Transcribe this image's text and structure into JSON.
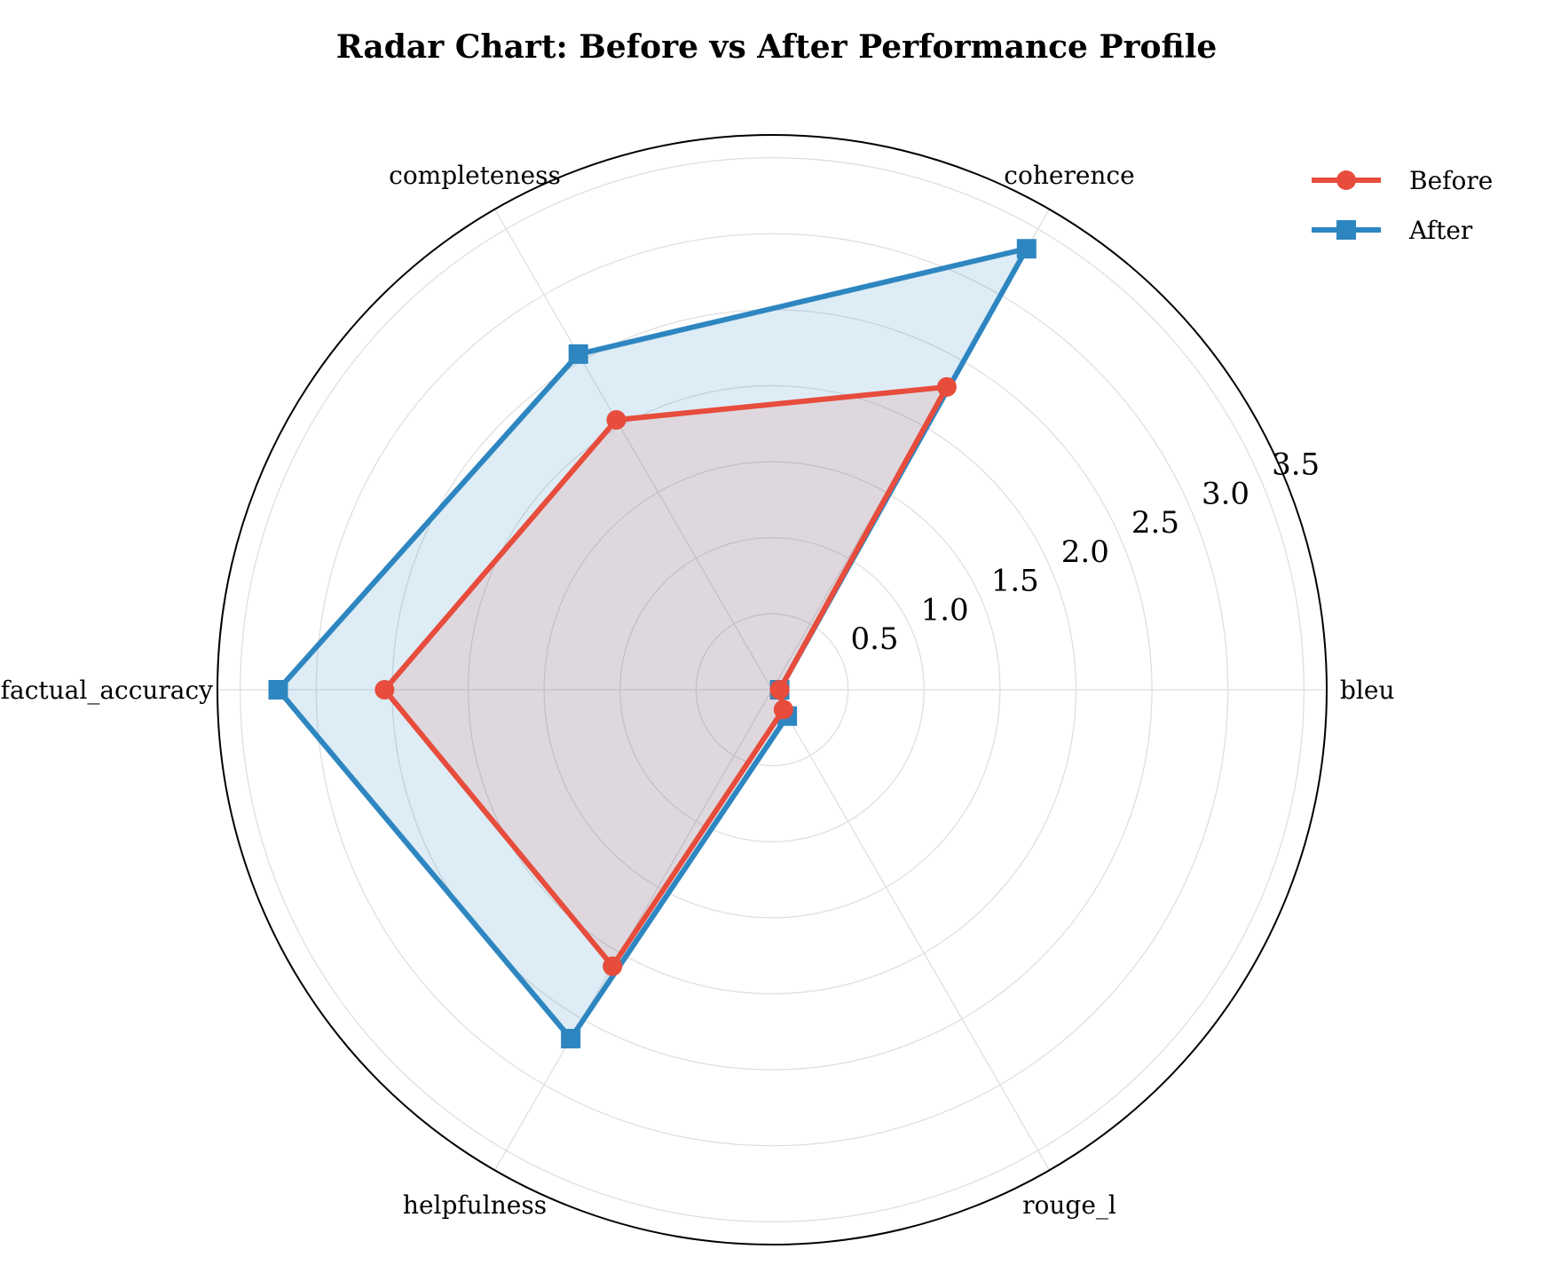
{
  "chart_data": {
    "type": "radar",
    "title": "Radar Chart: Before vs After Performance Profile",
    "axes": [
      "bleu",
      "coherence",
      "completeness",
      "factual_accuracy",
      "helpfulness",
      "rouge_l"
    ],
    "rlim": [
      0,
      3.65
    ],
    "rticks": [
      0.5,
      1.0,
      1.5,
      2.0,
      2.5,
      3.0,
      3.5
    ],
    "rtick_labels": [
      "0.5",
      "1.0",
      "1.5",
      "2.0",
      "2.5",
      "3.0",
      "3.5"
    ],
    "grid": true,
    "legend_position": "top-right",
    "series": [
      {
        "name": "Before",
        "color": "#e74c3c",
        "marker": "circle",
        "values": [
          0.05,
          2.3,
          2.05,
          2.55,
          2.1,
          0.15
        ]
      },
      {
        "name": "After",
        "color": "#2e86c1",
        "marker": "square",
        "values": [
          0.05,
          3.35,
          2.55,
          3.25,
          2.65,
          0.2
        ]
      }
    ]
  }
}
